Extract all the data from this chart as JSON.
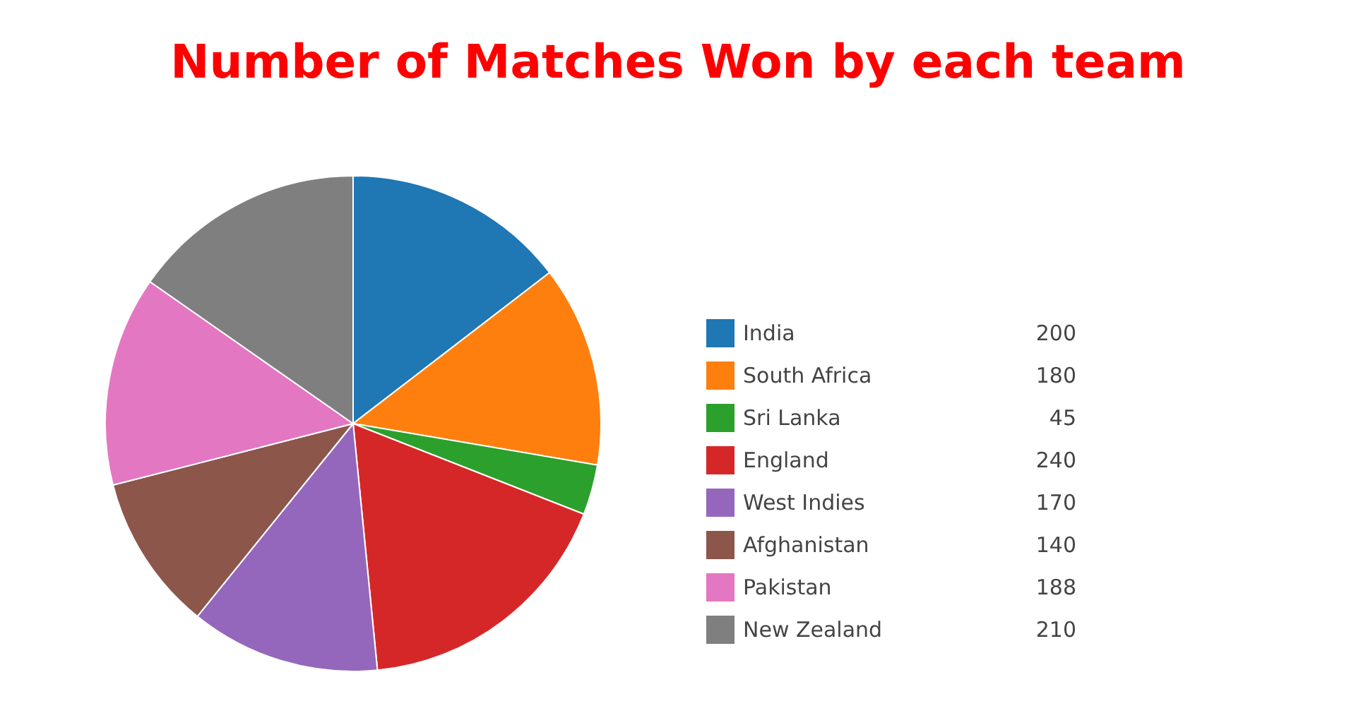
{
  "chart_data": {
    "type": "pie",
    "title": "Number of Matches Won by each team",
    "categories": [
      "India",
      "South Africa",
      "Sri Lanka",
      "England",
      "West Indies",
      "Afghanistan",
      "Pakistan",
      "New Zealand"
    ],
    "values": [
      200,
      180,
      45,
      240,
      170,
      140,
      188,
      210
    ],
    "colors": [
      "#1f77b4",
      "#ff7f0e",
      "#2ca02c",
      "#d62728",
      "#9467bd",
      "#8c564b",
      "#e377c2",
      "#7f7f7f"
    ],
    "legend": "right",
    "data_labels": true
  }
}
